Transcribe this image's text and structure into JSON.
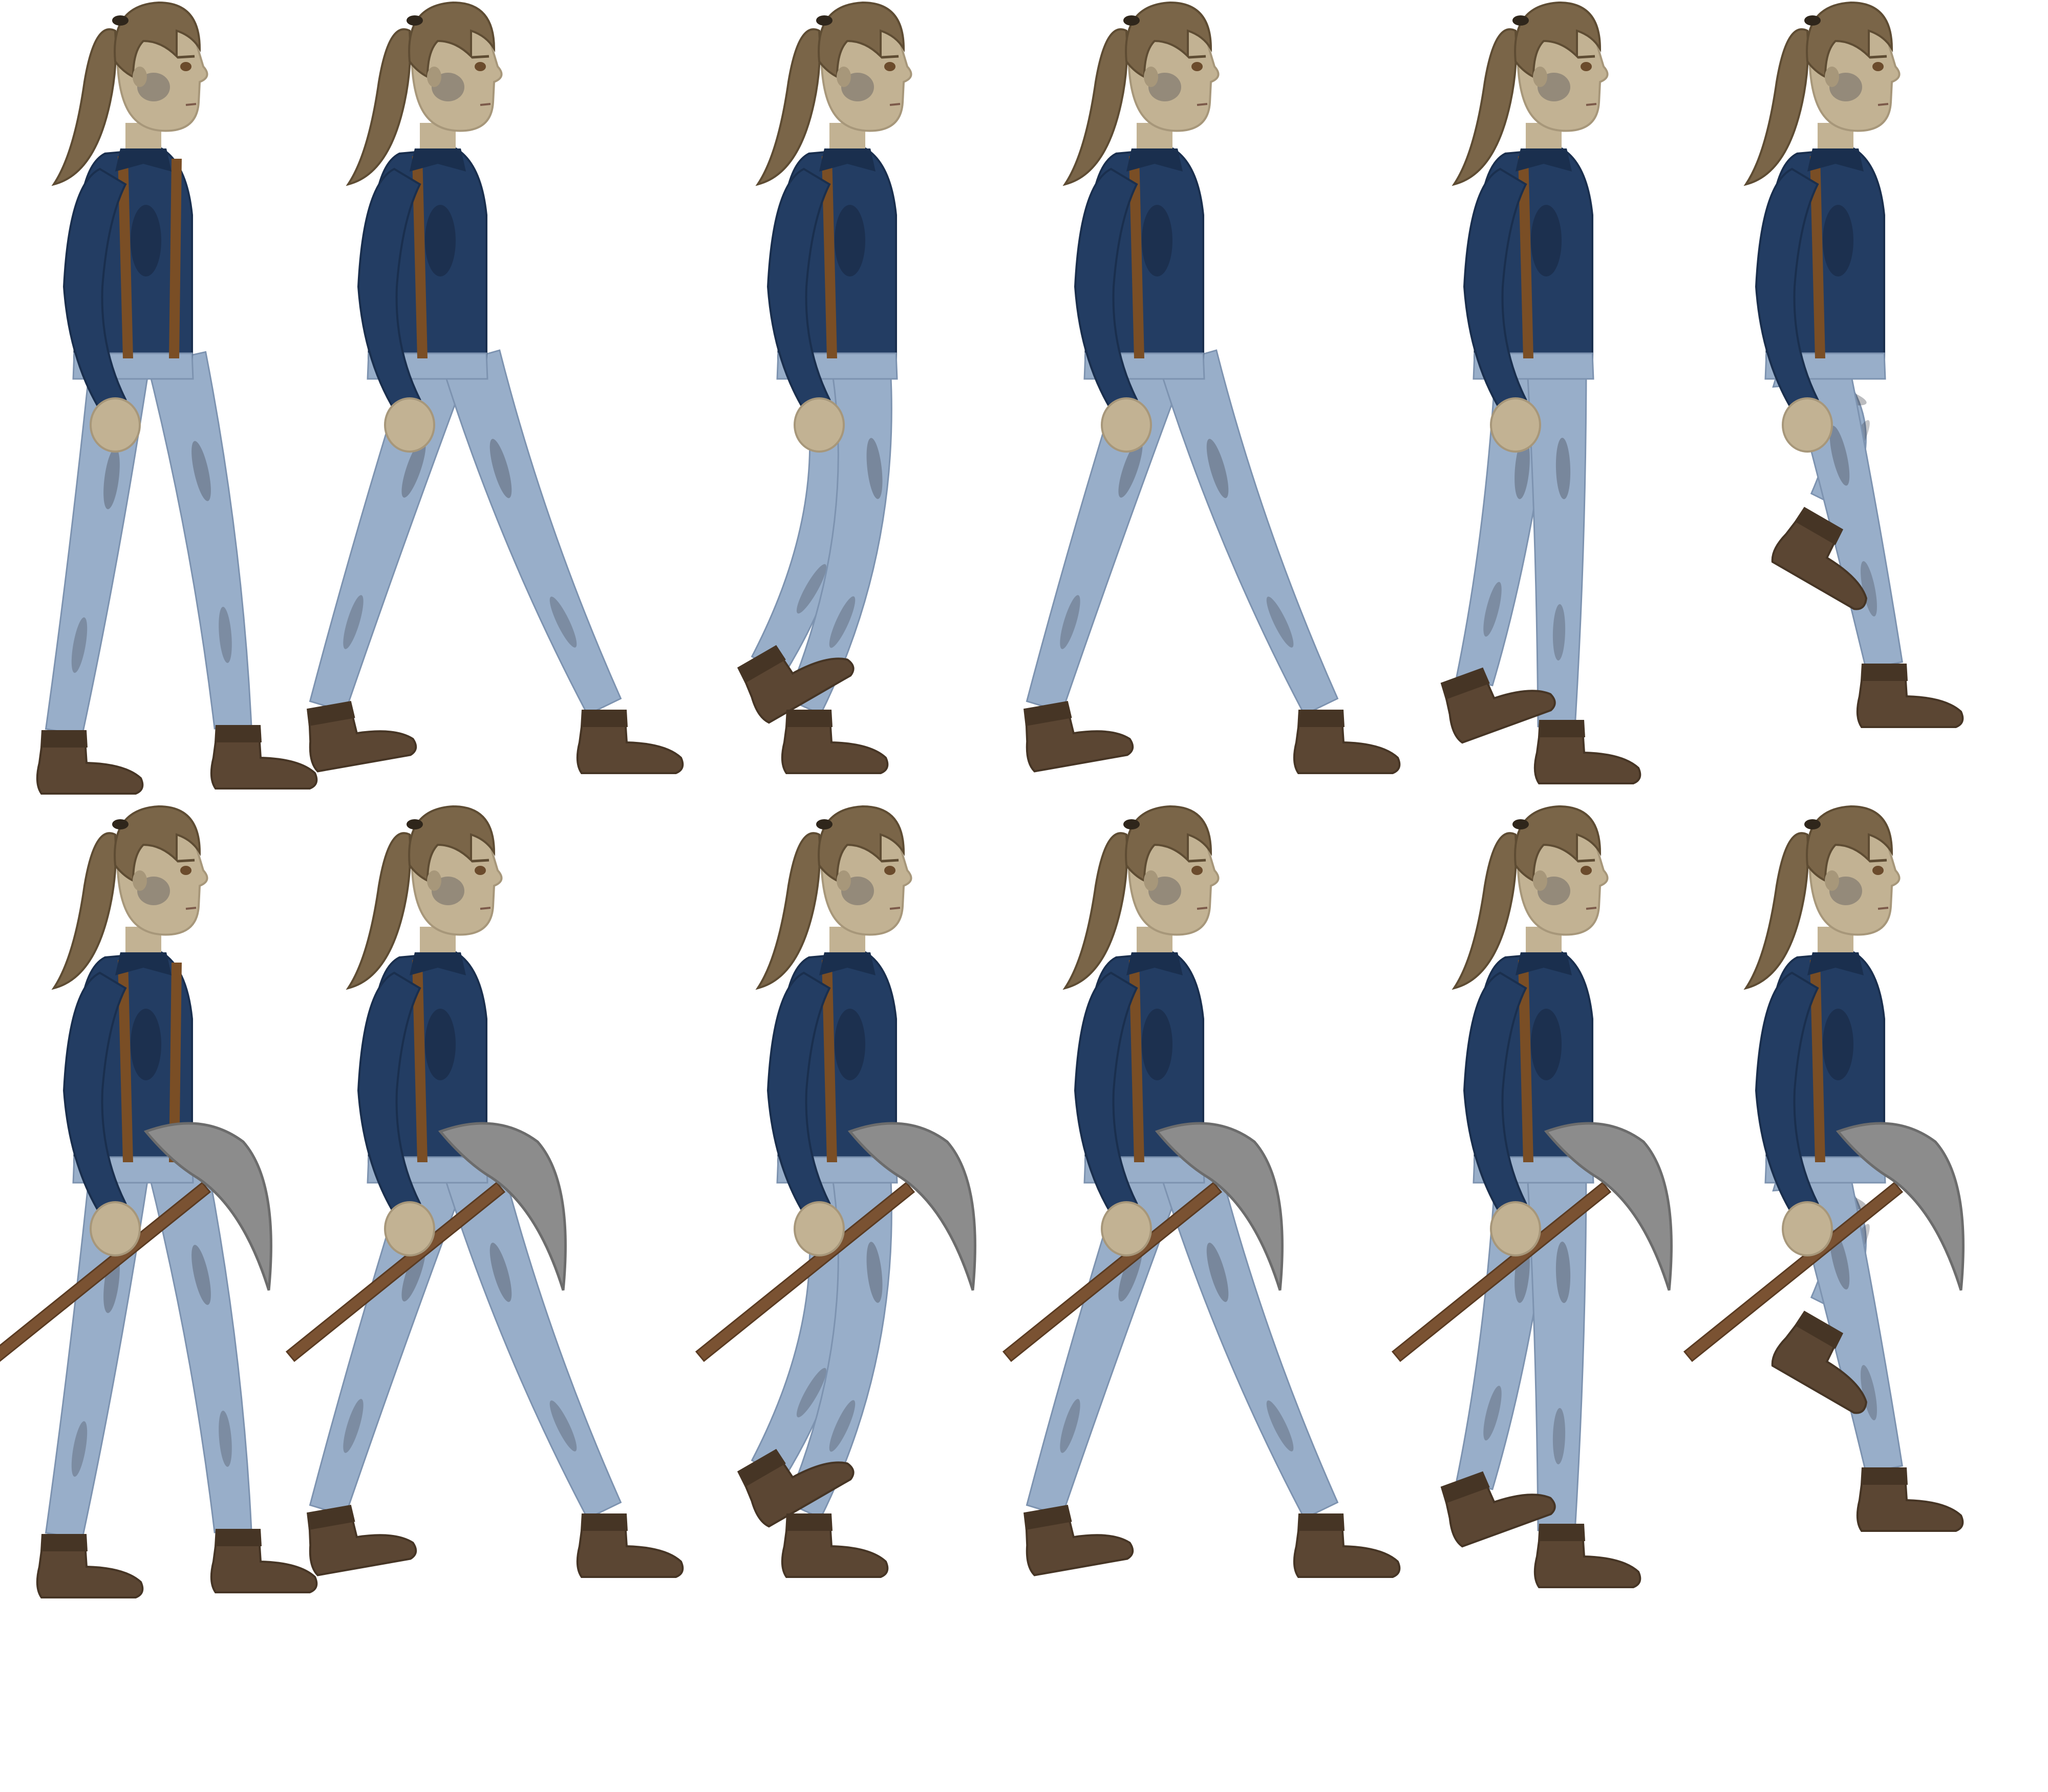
{
  "sheet": {
    "rows": [
      {
        "name": "walk",
        "with_pickaxe": false,
        "poses": [
          "front-stand",
          "stride-wide",
          "legs-cross",
          "stride-wide",
          "legs-together",
          "knee-raise"
        ]
      },
      {
        "name": "walk-pickaxe",
        "with_pickaxe": true,
        "poses": [
          "front-stand",
          "stride-wide",
          "legs-cross",
          "stride-wide",
          "legs-together",
          "knee-raise"
        ]
      }
    ]
  },
  "colors": {
    "background": "#ffffff",
    "hair": "#7a6548",
    "hair_shade": "#5e4c33",
    "hair_tie": "#2f261b",
    "skin": "#c2b293",
    "skin_shade": "#a7977a",
    "grime": "#6f6a66",
    "eye": "#6b4b2c",
    "shirt": "#233d63",
    "shirt_shade": "#1a2f4e",
    "suspender": "#7a4e25",
    "jeans": "#98aec9",
    "jeans_shade": "#7d93b0",
    "jeans_dirt": "#3b4048",
    "boot": "#5b4633",
    "boot_shade": "#463525",
    "pick_head": "#8c8c8c",
    "pick_head_shade": "#6c6c6c",
    "pick_handle": "#7a5232",
    "outline": "#2a2a2a"
  }
}
